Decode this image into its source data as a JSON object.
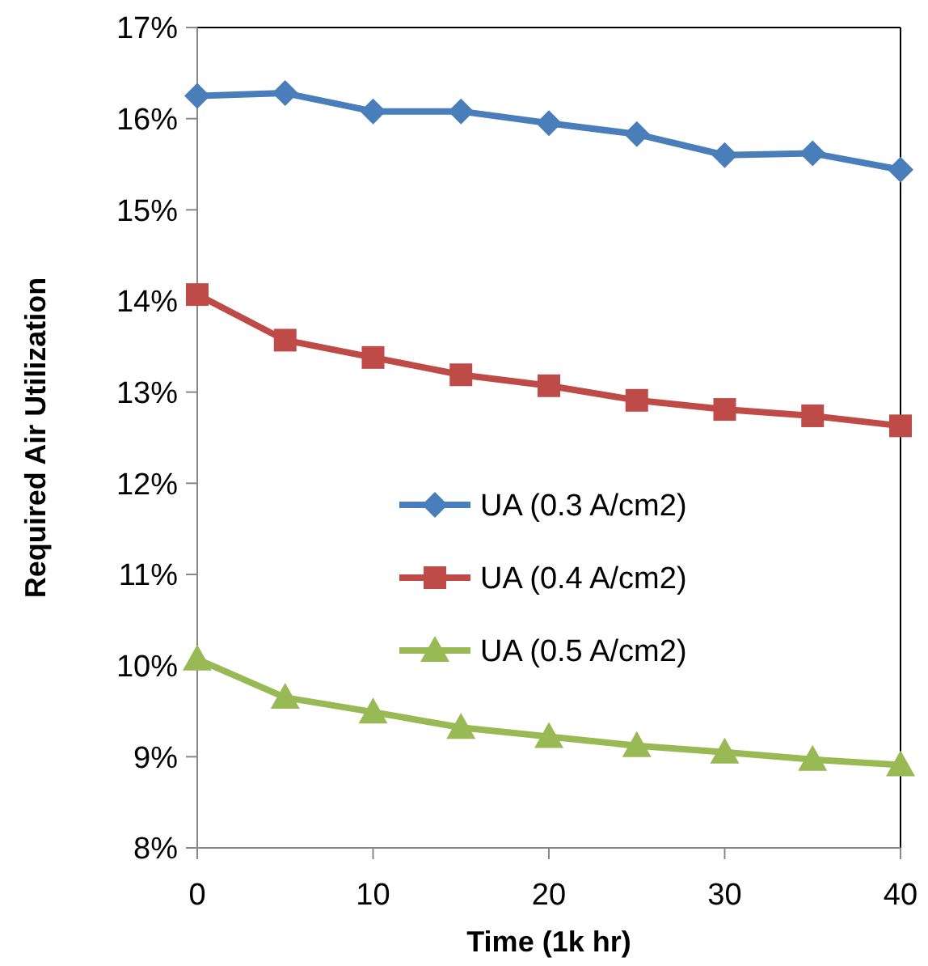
{
  "chart_data": {
    "type": "line",
    "xlabel": "Time (1k hr)",
    "ylabel": "Required Air Utilization",
    "x": [
      0,
      5,
      10,
      15,
      20,
      25,
      30,
      35,
      40
    ],
    "xlim": [
      0,
      40
    ],
    "xticks": [
      0,
      10,
      20,
      30,
      40
    ],
    "ylim": [
      8,
      17
    ],
    "yticks": [
      {
        "value": 8,
        "label": "8%"
      },
      {
        "value": 9,
        "label": "9%"
      },
      {
        "value": 10,
        "label": "10%"
      },
      {
        "value": 11,
        "label": "11%"
      },
      {
        "value": 12,
        "label": "12%"
      },
      {
        "value": 13,
        "label": "13%"
      },
      {
        "value": 14,
        "label": "14%"
      },
      {
        "value": 15,
        "label": "15%"
      },
      {
        "value": 16,
        "label": "16%"
      },
      {
        "value": 17,
        "label": "17%"
      }
    ],
    "grid": false,
    "legend": "right",
    "line_style": "solid",
    "series": [
      {
        "name": "UA (0.3 A/cm2)",
        "color": "#4a7ebb",
        "marker": "diamond",
        "values": [
          16.25,
          16.28,
          16.08,
          16.08,
          15.95,
          15.83,
          15.6,
          15.62,
          15.44
        ]
      },
      {
        "name": "UA (0.4 A/cm2)",
        "color": "#be4b48",
        "marker": "square",
        "values": [
          14.07,
          13.57,
          13.38,
          13.19,
          13.07,
          12.91,
          12.81,
          12.74,
          12.63
        ]
      },
      {
        "name": "UA (0.5 A/cm2)",
        "color": "#98b954",
        "marker": "triangle",
        "values": [
          10.07,
          9.65,
          9.49,
          9.32,
          9.22,
          9.12,
          9.05,
          8.97,
          8.91
        ]
      }
    ]
  }
}
